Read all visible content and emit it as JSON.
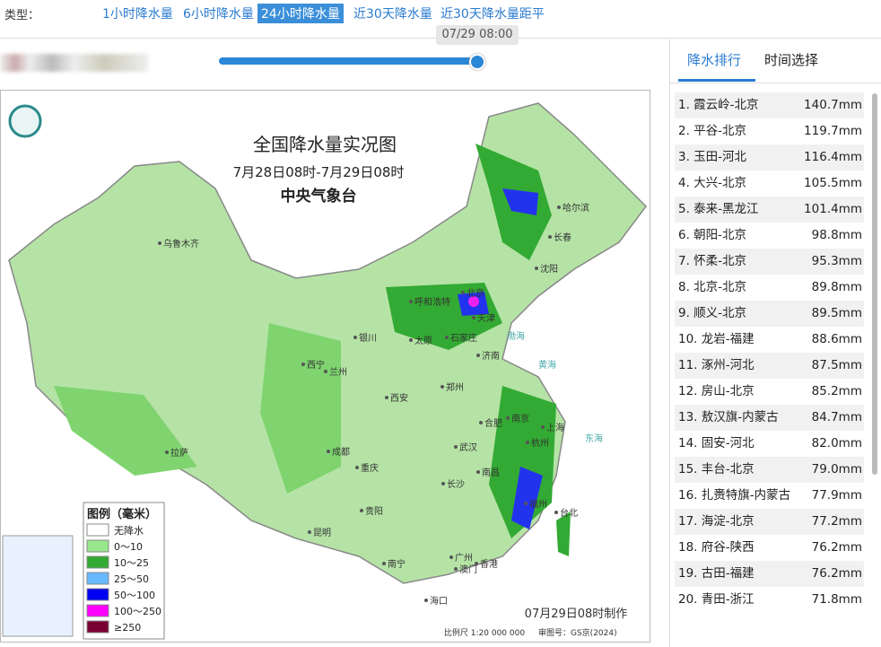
{
  "filter": {
    "label": "类型：",
    "tabs": [
      "1小时降水量",
      "6小时降水量",
      "24小时降水量",
      "近30天降水量",
      "近30天降水量距平"
    ],
    "active_tab": 2
  },
  "slider": {
    "tooltip": "07/29 08:00"
  },
  "map": {
    "title": "全国降水量实况图",
    "period": "7月28日08时-7月29日08时",
    "agency": "中央气象台",
    "cities": [
      "乌鲁木齐",
      "哈尔滨",
      "长春",
      "沈阳",
      "北京",
      "天津",
      "呼和浩特",
      "石家庄",
      "银川",
      "太原",
      "济南",
      "西宁",
      "兰州",
      "郑州",
      "西安",
      "合肥",
      "南京",
      "上海",
      "拉萨",
      "成都",
      "武汉",
      "杭州",
      "重庆",
      "南昌",
      "长沙",
      "福州",
      "贵阳",
      "台北",
      "昆明",
      "广州",
      "南宁",
      "澳门",
      "香港",
      "海口"
    ],
    "seas": [
      "渤海",
      "黄海",
      "东海"
    ],
    "legend": {
      "title": "图例（毫米）",
      "items": [
        {
          "label": "无降水",
          "color": "#ffffff"
        },
        {
          "label": "0～10",
          "color": "#98e68c"
        },
        {
          "label": "10～25",
          "color": "#33aa33"
        },
        {
          "label": "25～50",
          "color": "#66b8ff"
        },
        {
          "label": "50～100",
          "color": "#0000f0"
        },
        {
          "label": "100～250",
          "color": "#ff00ff"
        },
        {
          "label": "≥250",
          "color": "#7a0033"
        }
      ]
    },
    "made": "07月29日08时制作",
    "scale": "比例尺 1:20 000 000",
    "review": "审图号：GS京(2024)"
  },
  "panel": {
    "tabs": [
      "降水排行",
      "时间选择"
    ],
    "active_tab": 0,
    "rows": [
      [
        "1. 霞云岭-北京",
        "140.7mm"
      ],
      [
        "2. 平谷-北京",
        "119.7mm"
      ],
      [
        "3. 玉田-河北",
        "116.4mm"
      ],
      [
        "4. 大兴-北京",
        "105.5mm"
      ],
      [
        "5. 泰来-黑龙江",
        "101.4mm"
      ],
      [
        "6. 朝阳-北京",
        "98.8mm"
      ],
      [
        "7. 怀柔-北京",
        "95.3mm"
      ],
      [
        "8. 北京-北京",
        "89.8mm"
      ],
      [
        "9. 顺义-北京",
        "89.5mm"
      ],
      [
        "10. 龙岩-福建",
        "88.6mm"
      ],
      [
        "11. 涿州-河北",
        "87.5mm"
      ],
      [
        "12. 房山-北京",
        "85.2mm"
      ],
      [
        "13. 敖汉旗-内蒙古",
        "84.7mm"
      ],
      [
        "14. 固安-河北",
        "82.0mm"
      ],
      [
        "15. 丰台-北京",
        "79.0mm"
      ],
      [
        "16. 扎赉特旗-内蒙古",
        "77.9mm"
      ],
      [
        "17. 海淀-北京",
        "77.2mm"
      ],
      [
        "18. 府谷-陕西",
        "76.2mm"
      ],
      [
        "19. 古田-福建",
        "76.2mm"
      ],
      [
        "20. 青田-浙江",
        "71.8mm"
      ]
    ]
  }
}
